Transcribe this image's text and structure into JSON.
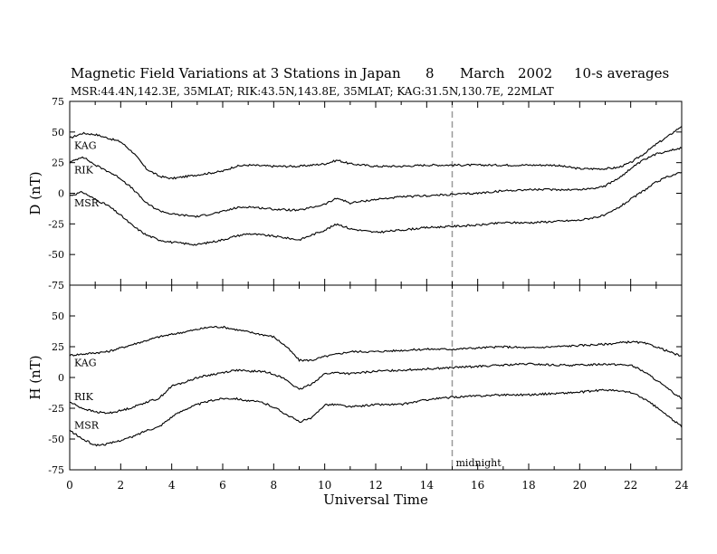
{
  "header": {
    "title": "Magnetic Field Variations at 3 Stations in Japan",
    "date_day": "8",
    "date_month": "March",
    "date_year": "2002",
    "averaging": "10-s averages",
    "subtitle": "MSR:44.4N,142.3E, 35MLAT;   RIK:43.5N,143.8E, 35MLAT;   KAG:31.5N,130.7E, 22MLAT"
  },
  "chart_data": {
    "type": "line",
    "xlabel": "Universal Time",
    "x_ticks": [
      "0",
      "2",
      "4",
      "6",
      "8",
      "10",
      "12",
      "14",
      "16",
      "18",
      "20",
      "22",
      "24"
    ],
    "xlim": [
      0,
      24
    ],
    "midnight_marker": {
      "x": 15,
      "label": "midnight"
    },
    "colors": {
      "line": "#000000",
      "marker": "#999999"
    },
    "panels": [
      {
        "id": "D",
        "ylabel": "D (nT)",
        "ylim": [
          -75,
          75
        ],
        "y_ticks": [
          "75",
          "50",
          "25",
          "0",
          "-25",
          "-50",
          "-75"
        ],
        "series": [
          {
            "name": "KAG",
            "x": [
              0,
              0.5,
              1,
              1.5,
              2,
              2.5,
              3,
              3.5,
              4,
              5,
              6,
              6.5,
              7,
              8,
              9,
              10,
              10.5,
              11,
              12,
              13,
              14,
              15,
              16,
              17,
              18,
              19,
              20,
              20.5,
              21,
              21.5,
              22,
              22.5,
              23,
              23.5,
              24
            ],
            "y": [
              45,
              49,
              48,
              45,
              42,
              33,
              20,
              14,
              12,
              15,
              18,
              22,
              23,
              22,
              22,
              24,
              27,
              24,
              22,
              22,
              23,
              23,
              23,
              23,
              23,
              23,
              20,
              20,
              20,
              21,
              25,
              32,
              40,
              47,
              55
            ]
          },
          {
            "name": "RIK",
            "x": [
              0,
              0.5,
              1,
              1.5,
              2,
              2.5,
              3,
              3.5,
              4,
              5,
              6,
              6.5,
              7,
              8,
              9,
              10,
              10.5,
              11,
              12,
              13,
              14,
              15,
              16,
              17,
              18,
              19,
              20,
              20.5,
              21,
              21.5,
              22,
              22.5,
              23,
              23.5,
              24
            ],
            "y": [
              25,
              30,
              23,
              18,
              12,
              3,
              -8,
              -14,
              -17,
              -19,
              -15,
              -12,
              -11,
              -13,
              -14,
              -9,
              -4,
              -8,
              -5,
              -3,
              -2,
              -1,
              0,
              2,
              3,
              3,
              3,
              4,
              6,
              12,
              20,
              27,
              32,
              35,
              37
            ]
          },
          {
            "name": "MSR",
            "x": [
              0,
              0.5,
              1,
              1.5,
              2,
              2.5,
              3,
              3.5,
              4,
              5,
              6,
              6.5,
              7,
              8,
              9,
              10,
              10.5,
              11,
              12,
              13,
              14,
              15,
              16,
              17,
              18,
              19,
              20,
              20.5,
              21,
              21.5,
              22,
              22.5,
              23,
              23.5,
              24
            ],
            "y": [
              -2,
              1,
              -5,
              -10,
              -18,
              -27,
              -34,
              -38,
              -40,
              -42,
              -38,
              -35,
              -33,
              -35,
              -38,
              -30,
              -25,
              -29,
              -32,
              -30,
              -28,
              -27,
              -26,
              -24,
              -24,
              -23,
              -22,
              -20,
              -18,
              -12,
              -5,
              2,
              9,
              14,
              17
            ]
          }
        ]
      },
      {
        "id": "H",
        "ylabel": "H (nT)",
        "ylim": [
          -75,
          75
        ],
        "y_ticks": [
          "50",
          "25",
          "0",
          "-25",
          "-50",
          "-75"
        ],
        "series": [
          {
            "name": "KAG",
            "x": [
              0,
              0.5,
              1,
              1.5,
              2,
              2.5,
              3,
              3.5,
              4,
              4.5,
              5,
              5.5,
              6,
              6.5,
              7,
              7.5,
              8,
              8.5,
              9,
              9.5,
              10,
              11,
              12,
              13,
              14,
              15,
              16,
              17,
              18,
              19,
              20,
              21,
              22,
              22.5,
              23,
              23.5,
              24
            ],
            "y": [
              18,
              19,
              20,
              21,
              24,
              27,
              30,
              33,
              35,
              37,
              39,
              41,
              41,
              39,
              37,
              35,
              33,
              25,
              14,
              14,
              17,
              21,
              21,
              22,
              23,
              23,
              24,
              25,
              24,
              25,
              26,
              27,
              29,
              28,
              25,
              21,
              17
            ]
          },
          {
            "name": "RIK",
            "x": [
              0,
              0.5,
              1,
              1.5,
              2,
              2.5,
              3,
              3.5,
              4,
              4.5,
              5,
              5.5,
              6,
              6.5,
              7,
              7.5,
              8,
              8.5,
              9,
              9.5,
              10,
              10.5,
              11,
              12,
              13,
              14,
              15,
              16,
              17,
              18,
              19,
              20,
              21,
              22,
              22.5,
              23,
              23.5,
              24
            ],
            "y": [
              -20,
              -25,
              -28,
              -29,
              -27,
              -24,
              -20,
              -17,
              -7,
              -4,
              0,
              2,
              4,
              6,
              5,
              5,
              3,
              -2,
              -10,
              -5,
              3,
              4,
              3,
              5,
              6,
              7,
              8,
              9,
              10,
              11,
              10,
              10,
              11,
              10,
              5,
              -2,
              -10,
              -17
            ]
          },
          {
            "name": "MSR",
            "x": [
              0,
              0.5,
              1,
              1.5,
              2,
              2.5,
              3,
              3.5,
              4,
              4.5,
              5,
              5.5,
              6,
              6.5,
              7,
              7.5,
              8,
              8.5,
              9,
              9.5,
              10,
              10.5,
              11,
              12,
              13,
              14,
              15,
              16,
              17,
              18,
              19,
              20,
              21,
              22,
              22.5,
              23,
              23.5,
              24
            ],
            "y": [
              -43,
              -50,
              -55,
              -54,
              -51,
              -48,
              -43,
              -40,
              -32,
              -26,
              -22,
              -19,
              -17,
              -17,
              -19,
              -20,
              -24,
              -30,
              -36,
              -33,
              -22,
              -22,
              -24,
              -22,
              -22,
              -18,
              -16,
              -15,
              -14,
              -14,
              -13,
              -12,
              -10,
              -12,
              -17,
              -24,
              -32,
              -40
            ]
          }
        ]
      }
    ]
  }
}
